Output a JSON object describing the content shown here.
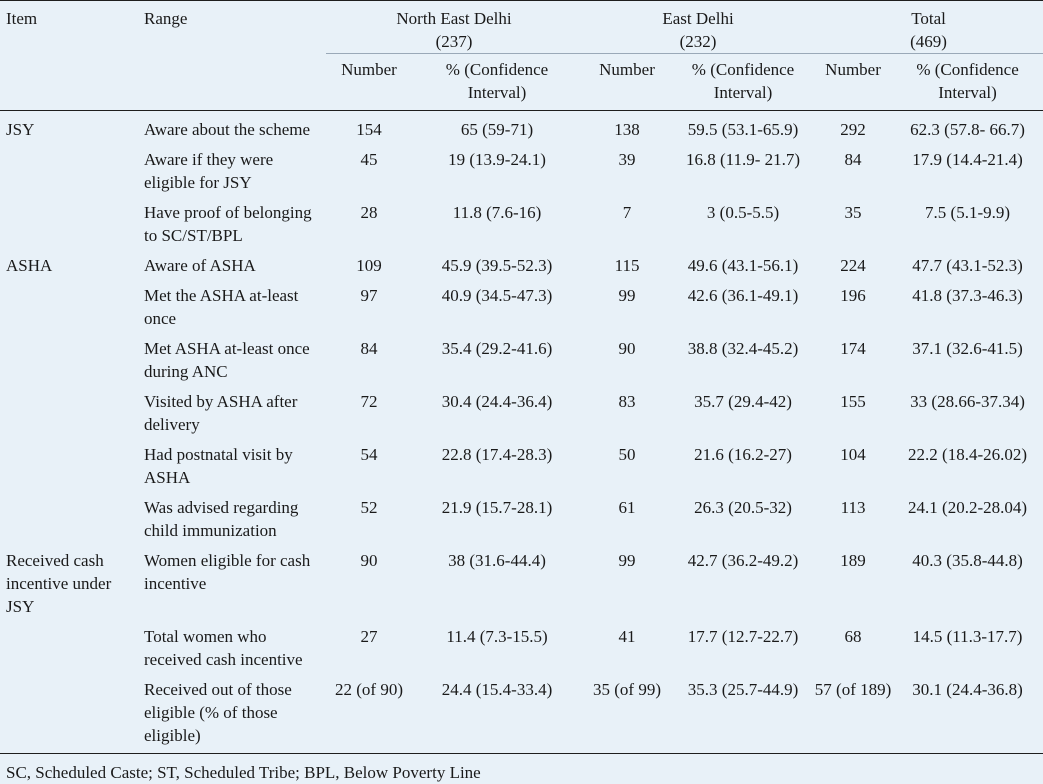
{
  "header": {
    "item": "Item",
    "range": "Range",
    "groups": [
      {
        "name": "North East Delhi",
        "n": "(237)"
      },
      {
        "name": "East Delhi",
        "n": "(232)"
      },
      {
        "name": "Total",
        "n": "(469)"
      }
    ],
    "number": "Number",
    "pct_line1": "% (Confidence",
    "pct_line2": "Interval)"
  },
  "rows": [
    {
      "item": "JSY",
      "range": "Aware about the scheme",
      "ned_n": "154",
      "ned_p": "65 (59-71)",
      "ed_n": "138",
      "ed_p": "59.5 (53.1-65.9)",
      "t_n": "292",
      "t_p": "62.3 (57.8- 66.7)"
    },
    {
      "item": "",
      "range": "Aware if they were eligible for JSY",
      "ned_n": "45",
      "ned_p": "19 (13.9-24.1)",
      "ed_n": "39",
      "ed_p": "16.8 (11.9- 21.7)",
      "t_n": "84",
      "t_p": "17.9 (14.4-21.4)"
    },
    {
      "item": "",
      "range": "Have proof of belonging to SC/ST/BPL",
      "ned_n": "28",
      "ned_p": "11.8 (7.6-16)",
      "ed_n": "7",
      "ed_p": "3 (0.5-5.5)",
      "t_n": "35",
      "t_p": "7.5 (5.1-9.9)"
    },
    {
      "item": "ASHA",
      "range": "Aware of ASHA",
      "ned_n": "109",
      "ned_p": "45.9 (39.5-52.3)",
      "ed_n": "115",
      "ed_p": "49.6 (43.1-56.1)",
      "t_n": "224",
      "t_p": "47.7 (43.1-52.3)"
    },
    {
      "item": "",
      "range": "Met the ASHA at-least once",
      "ned_n": "97",
      "ned_p": "40.9 (34.5-47.3)",
      "ed_n": "99",
      "ed_p": "42.6 (36.1-49.1)",
      "t_n": "196",
      "t_p": "41.8 (37.3-46.3)"
    },
    {
      "item": "",
      "range": "Met ASHA at-least once during ANC",
      "ned_n": "84",
      "ned_p": "35.4 (29.2-41.6)",
      "ed_n": "90",
      "ed_p": "38.8 (32.4-45.2)",
      "t_n": "174",
      "t_p": "37.1 (32.6-41.5)"
    },
    {
      "item": "",
      "range": "Visited by ASHA after delivery",
      "ned_n": "72",
      "ned_p": "30.4 (24.4-36.4)",
      "ed_n": "83",
      "ed_p": "35.7 (29.4-42)",
      "t_n": "155",
      "t_p": "33 (28.66-37.34)"
    },
    {
      "item": "",
      "range": "Had postnatal visit by ASHA",
      "ned_n": "54",
      "ned_p": "22.8 (17.4-28.3)",
      "ed_n": "50",
      "ed_p": "21.6 (16.2-27)",
      "t_n": "104",
      "t_p": "22.2 (18.4-26.02)"
    },
    {
      "item": "",
      "range": "Was advised regarding child immunization",
      "ned_n": "52",
      "ned_p": "21.9 (15.7-28.1)",
      "ed_n": "61",
      "ed_p": "26.3 (20.5-32)",
      "t_n": "113",
      "t_p": "24.1 (20.2-28.04)"
    },
    {
      "item": "Received cash incentive under JSY",
      "range": "Women eligible for cash incentive",
      "ned_n": "90",
      "ned_p": "38 (31.6-44.4)",
      "ed_n": "99",
      "ed_p": "42.7 (36.2-49.2)",
      "t_n": "189",
      "t_p": "40.3 (35.8-44.8)"
    },
    {
      "item": "",
      "range": "Total women who received cash incentive",
      "ned_n": "27",
      "ned_p": "11.4 (7.3-15.5)",
      "ed_n": "41",
      "ed_p": "17.7 (12.7-22.7)",
      "t_n": "68",
      "t_p": "14.5 (11.3-17.7)"
    },
    {
      "item": "",
      "range": "Received out of those eligible (% of those eligible)",
      "ned_n": "22 (of 90)",
      "ned_p": "24.4 (15.4-33.4)",
      "ed_n": "35 (of 99)",
      "ed_p": "35.3 (25.7-44.9)",
      "t_n": "57 (of 189)",
      "t_p": "30.1 (24.4-36.8)"
    }
  ],
  "footnote": "SC, Scheduled Caste; ST, Scheduled Tribe; BPL, Below Poverty Line"
}
